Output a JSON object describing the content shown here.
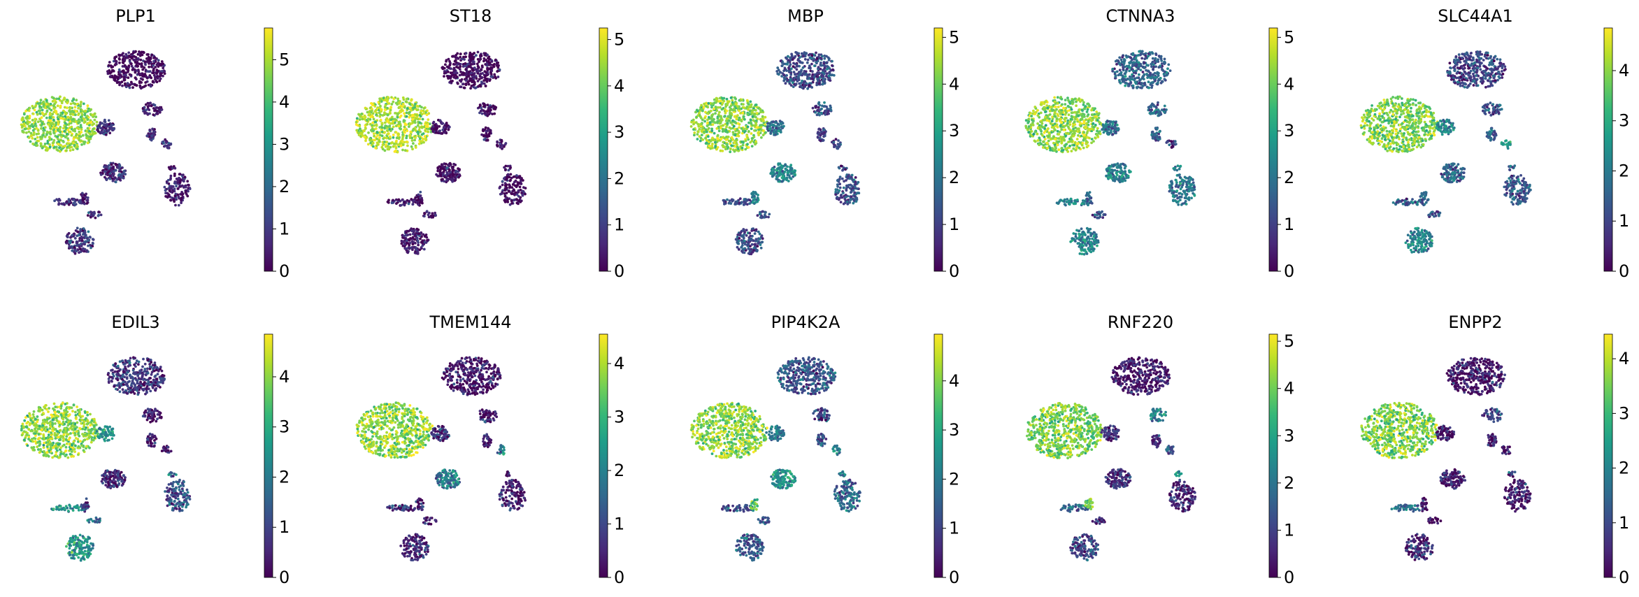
{
  "figure": {
    "background": "#ffffff"
  },
  "colormap": {
    "name": "viridis",
    "stops": [
      "#440154",
      "#482878",
      "#3e4989",
      "#31688e",
      "#26828e",
      "#1f9e89",
      "#35b779",
      "#6ece58",
      "#b5de2b",
      "#fde725"
    ]
  },
  "chart_data": [
    {
      "type": "scatter",
      "plot": "umap",
      "title": "PLP1",
      "vmin": 0,
      "vmax": 5.75,
      "ticks": [
        0,
        1,
        2,
        3,
        4,
        5
      ],
      "cluster_expression": {
        "A": 0.1,
        "B": 4.8,
        "C": 0.7,
        "D": 0.5,
        "E": 0.8,
        "F": 0.4,
        "G": 1.0,
        "H": 0.6,
        "I": 0.7,
        "J": 0.4,
        "K": 0.8,
        "L": 0.3,
        "M": 0.7
      }
    },
    {
      "type": "scatter",
      "plot": "umap",
      "title": "ST18",
      "vmin": 0,
      "vmax": 5.25,
      "ticks": [
        0,
        1,
        2,
        3,
        4,
        5
      ],
      "cluster_expression": {
        "A": 0.1,
        "B": 4.6,
        "C": 0.2,
        "D": 0.3,
        "E": 0.2,
        "F": 0.2,
        "G": 0.3,
        "H": 0.2,
        "I": 0.2,
        "J": 0.3,
        "K": 0.3,
        "L": 0.2,
        "M": 0.3
      }
    },
    {
      "type": "scatter",
      "plot": "umap",
      "title": "MBP",
      "vmin": 0,
      "vmax": 5.2,
      "ticks": [
        0,
        1,
        2,
        3,
        4,
        5
      ],
      "cluster_expression": {
        "A": 1.2,
        "B": 4.3,
        "C": 1.8,
        "D": 1.3,
        "E": 2.4,
        "F": 1.4,
        "G": 1.2,
        "H": 1.0,
        "I": 1.2,
        "J": 1.0,
        "K": 1.3,
        "L": 2.5,
        "M": 1.1
      }
    },
    {
      "type": "scatter",
      "plot": "umap",
      "title": "CTNNA3",
      "vmin": 0,
      "vmax": 5.2,
      "ticks": [
        0,
        1,
        2,
        3,
        4,
        5
      ],
      "cluster_expression": {
        "A": 1.6,
        "B": 4.3,
        "C": 2.0,
        "D": 1.8,
        "E": 2.2,
        "F": 2.0,
        "G": 2.3,
        "H": 1.6,
        "I": 0.8,
        "J": 2.0,
        "K": 2.3,
        "L": 1.8,
        "M": 1.5
      }
    },
    {
      "type": "scatter",
      "plot": "umap",
      "title": "SLC44A1",
      "vmin": 0,
      "vmax": 4.85,
      "ticks": [
        0,
        1,
        2,
        3,
        4
      ],
      "cluster_expression": {
        "A": 1.0,
        "B": 3.9,
        "C": 2.2,
        "D": 1.2,
        "E": 1.6,
        "F": 1.3,
        "G": 2.2,
        "H": 1.5,
        "I": 2.6,
        "J": 1.2,
        "K": 1.4,
        "L": 1.6,
        "M": 1.2
      }
    },
    {
      "type": "scatter",
      "plot": "umap",
      "title": "EDIL3",
      "vmin": 0,
      "vmax": 4.85,
      "ticks": [
        0,
        1,
        2,
        3,
        4
      ],
      "cluster_expression": {
        "A": 0.8,
        "B": 4.0,
        "C": 2.6,
        "D": 0.3,
        "E": 0.5,
        "F": 1.2,
        "G": 2.5,
        "H": 0.5,
        "I": 0.3,
        "J": 1.6,
        "K": 2.5,
        "L": 0.8,
        "M": 1.8
      }
    },
    {
      "type": "scatter",
      "plot": "umap",
      "title": "TMEM144",
      "vmin": 0,
      "vmax": 4.55,
      "ticks": [
        0,
        1,
        2,
        3,
        4
      ],
      "cluster_expression": {
        "A": 0.2,
        "B": 3.8,
        "C": 0.6,
        "D": 0.3,
        "E": 1.8,
        "F": 0.4,
        "G": 0.5,
        "H": 0.4,
        "I": 2.0,
        "J": 0.6,
        "K": 0.7,
        "L": 0.4,
        "M": 0.5
      }
    },
    {
      "type": "scatter",
      "plot": "umap",
      "title": "PIP4K2A",
      "vmin": 0,
      "vmax": 4.95,
      "ticks": [
        0,
        1,
        2,
        3,
        4
      ],
      "cluster_expression": {
        "A": 1.3,
        "B": 4.1,
        "C": 2.0,
        "D": 1.2,
        "E": 2.6,
        "F": 1.6,
        "G": 1.5,
        "H": 1.4,
        "I": 2.2,
        "J": 2.0,
        "K": 1.3,
        "L": 3.6,
        "M": 1.3
      }
    },
    {
      "type": "scatter",
      "plot": "umap",
      "title": "RNF220",
      "vmin": 0,
      "vmax": 5.15,
      "ticks": [
        0,
        1,
        2,
        3,
        4,
        5
      ],
      "cluster_expression": {
        "A": 0.3,
        "B": 4.1,
        "C": 0.7,
        "D": 2.4,
        "E": 0.8,
        "F": 0.5,
        "G": 1.2,
        "H": 0.4,
        "I": 1.2,
        "J": 2.6,
        "K": 1.8,
        "L": 4.0,
        "M": 0.5
      }
    },
    {
      "type": "scatter",
      "plot": "umap",
      "title": "ENPP2",
      "vmin": 0,
      "vmax": 4.45,
      "ticks": [
        0,
        1,
        2,
        3,
        4
      ],
      "cluster_expression": {
        "A": 0.2,
        "B": 3.6,
        "C": 0.3,
        "D": 1.2,
        "E": 0.3,
        "F": 0.3,
        "G": 0.5,
        "H": 0.3,
        "I": 0.2,
        "J": 0.6,
        "K": 1.6,
        "L": 0.3,
        "M": 0.3
      }
    }
  ]
}
